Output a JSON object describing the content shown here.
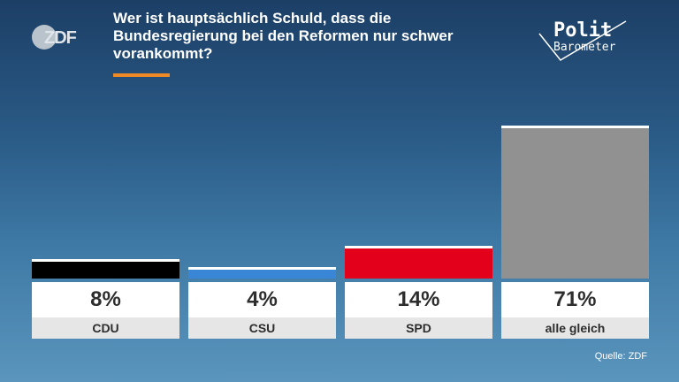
{
  "header": {
    "logo_text": "ZDF",
    "title": "Wer ist hauptsächlich Schuld, dass die Bundesregierung bei den Reformen nur schwer vorankommt?",
    "brand_line1": "Polit",
    "brand_line2": "Barometer",
    "accent_color": "#f08a24"
  },
  "chart_data": {
    "type": "bar",
    "title": "Wer ist hauptsächlich Schuld, dass die Bundesregierung bei den Reformen nur schwer vorankommt?",
    "categories": [
      "CDU",
      "CSU",
      "SPD",
      "alle gleich"
    ],
    "values": [
      8,
      4,
      14,
      71
    ],
    "value_labels": [
      "8%",
      "4%",
      "14%",
      "71%"
    ],
    "unit": "%",
    "colors": [
      "#000000",
      "#3a86d6",
      "#e2001a",
      "#919191"
    ],
    "ylim": [
      0,
      100
    ],
    "grid": false,
    "legend": "none"
  },
  "footer": {
    "source": "Quelle: ZDF"
  }
}
